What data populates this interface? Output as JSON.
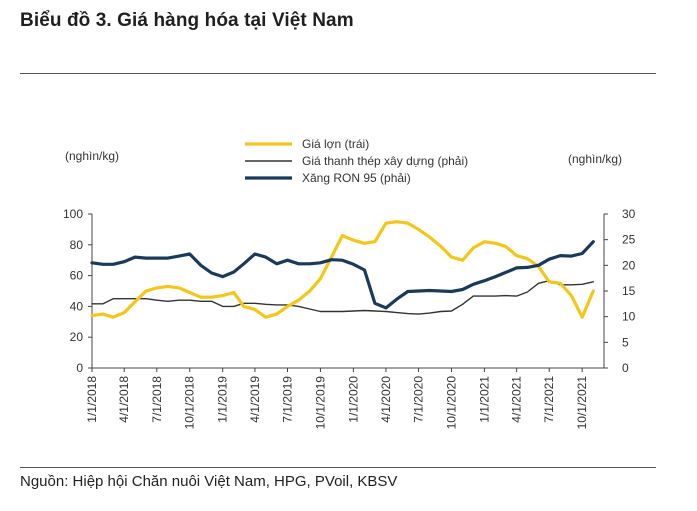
{
  "title": "Biểu đồ 3. Giá hàng hóa tại Việt Nam",
  "source": "Nguồn: Hiệp hội Chăn nuôi Việt Nam, HPG, PVoil, KBSV",
  "colors": {
    "pork": "#f5c518",
    "steel": "#333333",
    "ron95": "#1a3a5c"
  },
  "chart_data": {
    "type": "line",
    "y_left_label": "(nghìn/kg)",
    "y_right_label": "(nghìn/kg)",
    "ylim_left": [
      0,
      100
    ],
    "ylim_right": [
      0,
      30
    ],
    "yticks_left": [
      "0",
      "20",
      "40",
      "60",
      "80",
      "100"
    ],
    "yticks_right": [
      "0",
      "5",
      "10",
      "15",
      "20",
      "25",
      "30"
    ],
    "xticks": [
      "1/1/2018",
      "4/1/2018",
      "7/1/2018",
      "10/1/2018",
      "1/1/2019",
      "4/1/2019",
      "7/1/2019",
      "10/1/2019",
      "1/1/2020",
      "4/1/2020",
      "7/1/2020",
      "10/1/2020",
      "1/1/2021",
      "4/1/2021",
      "7/1/2021",
      "10/1/2021"
    ],
    "legend_position": "top",
    "x_range": [
      "2018-01-01",
      "2021-12-01"
    ],
    "series": [
      {
        "name": "Giá lợn (trái)",
        "axis": "left",
        "color": "#f5c518",
        "x": [
          "2018-01-01",
          "2018-02-01",
          "2018-03-01",
          "2018-04-01",
          "2018-05-01",
          "2018-06-01",
          "2018-07-01",
          "2018-08-01",
          "2018-09-01",
          "2018-10-01",
          "2018-11-01",
          "2018-12-01",
          "2019-01-01",
          "2019-02-01",
          "2019-03-01",
          "2019-04-01",
          "2019-05-01",
          "2019-06-01",
          "2019-07-01",
          "2019-08-01",
          "2019-09-01",
          "2019-10-01",
          "2019-11-01",
          "2019-12-01",
          "2020-01-01",
          "2020-02-01",
          "2020-03-01",
          "2020-04-01",
          "2020-05-01",
          "2020-06-01",
          "2020-07-01",
          "2020-08-01",
          "2020-09-01",
          "2020-10-01",
          "2020-11-01",
          "2020-12-01",
          "2021-01-01",
          "2021-02-01",
          "2021-03-01",
          "2021-04-01",
          "2021-05-01",
          "2021-06-01",
          "2021-07-01",
          "2021-08-01",
          "2021-09-01",
          "2021-10-01",
          "2021-11-01"
        ],
        "values": [
          34,
          35,
          33,
          36,
          43,
          50,
          52,
          53,
          52,
          49,
          46,
          46,
          47,
          49,
          40,
          38,
          33,
          35,
          40,
          44,
          50,
          58,
          72,
          86,
          83,
          81,
          82,
          94,
          95,
          94,
          90,
          85,
          79,
          72,
          70,
          78,
          82,
          81,
          79,
          73,
          71,
          66,
          56,
          55,
          47,
          33,
          50
        ]
      },
      {
        "name": "Giá thanh thép xây dựng (phải)",
        "axis": "right",
        "color": "#333333",
        "x": [
          "2018-01-01",
          "2018-02-01",
          "2018-03-01",
          "2018-04-01",
          "2018-05-01",
          "2018-06-01",
          "2018-07-01",
          "2018-08-01",
          "2018-09-01",
          "2018-10-01",
          "2018-11-01",
          "2018-12-01",
          "2019-01-01",
          "2019-02-01",
          "2019-03-01",
          "2019-04-01",
          "2019-05-01",
          "2019-06-01",
          "2019-07-01",
          "2019-08-01",
          "2019-09-01",
          "2019-10-01",
          "2019-11-01",
          "2019-12-01",
          "2020-01-01",
          "2020-02-01",
          "2020-03-01",
          "2020-04-01",
          "2020-05-01",
          "2020-06-01",
          "2020-07-01",
          "2020-08-01",
          "2020-09-01",
          "2020-10-01",
          "2020-11-01",
          "2020-12-01",
          "2021-01-01",
          "2021-02-01",
          "2021-03-01",
          "2021-04-01",
          "2021-05-01",
          "2021-06-01",
          "2021-07-01",
          "2021-08-01",
          "2021-09-01",
          "2021-10-01",
          "2021-11-01"
        ],
        "values": [
          12.5,
          12.5,
          13.5,
          13.5,
          13.5,
          13.5,
          13.2,
          13.0,
          13.2,
          13.2,
          13.0,
          13.0,
          12.0,
          12.0,
          12.6,
          12.6,
          12.4,
          12.3,
          12.3,
          12.0,
          11.5,
          11.0,
          11.0,
          11.0,
          11.1,
          11.2,
          11.1,
          11.0,
          10.8,
          10.6,
          10.5,
          10.7,
          11.0,
          11.1,
          12.4,
          14.0,
          14.0,
          14.0,
          14.1,
          14.0,
          14.8,
          16.5,
          17.0,
          16.2,
          16.2,
          16.3,
          16.8
        ]
      },
      {
        "name": "Xăng RON 95 (phải)",
        "axis": "right",
        "color": "#1a3a5c",
        "x": [
          "2018-01-01",
          "2018-02-01",
          "2018-03-01",
          "2018-04-01",
          "2018-05-01",
          "2018-06-01",
          "2018-07-01",
          "2018-08-01",
          "2018-09-01",
          "2018-10-01",
          "2018-11-01",
          "2018-12-01",
          "2019-01-01",
          "2019-02-01",
          "2019-03-01",
          "2019-04-01",
          "2019-05-01",
          "2019-06-01",
          "2019-07-01",
          "2019-08-01",
          "2019-09-01",
          "2019-10-01",
          "2019-11-01",
          "2019-12-01",
          "2020-01-01",
          "2020-02-01",
          "2020-03-01",
          "2020-04-01",
          "2020-05-01",
          "2020-06-01",
          "2020-07-01",
          "2020-08-01",
          "2020-09-01",
          "2020-10-01",
          "2020-11-01",
          "2020-12-01",
          "2021-01-01",
          "2021-02-01",
          "2021-03-01",
          "2021-04-01",
          "2021-05-01",
          "2021-06-01",
          "2021-07-01",
          "2021-08-01",
          "2021-09-01",
          "2021-10-01",
          "2021-11-01"
        ],
        "values": [
          20.5,
          20.2,
          20.2,
          20.7,
          21.6,
          21.4,
          21.4,
          21.4,
          21.8,
          22.2,
          20.0,
          18.5,
          17.8,
          18.7,
          20.3,
          22.2,
          21.6,
          20.3,
          21.0,
          20.3,
          20.3,
          20.5,
          21.1,
          21.0,
          20.2,
          19.1,
          12.6,
          11.7,
          13.4,
          14.9,
          15.0,
          15.1,
          15.0,
          14.9,
          15.3,
          16.3,
          17.0,
          17.8,
          18.6,
          19.5,
          19.6,
          20.0,
          21.2,
          21.9,
          21.8,
          22.3,
          24.6
        ]
      }
    ]
  }
}
